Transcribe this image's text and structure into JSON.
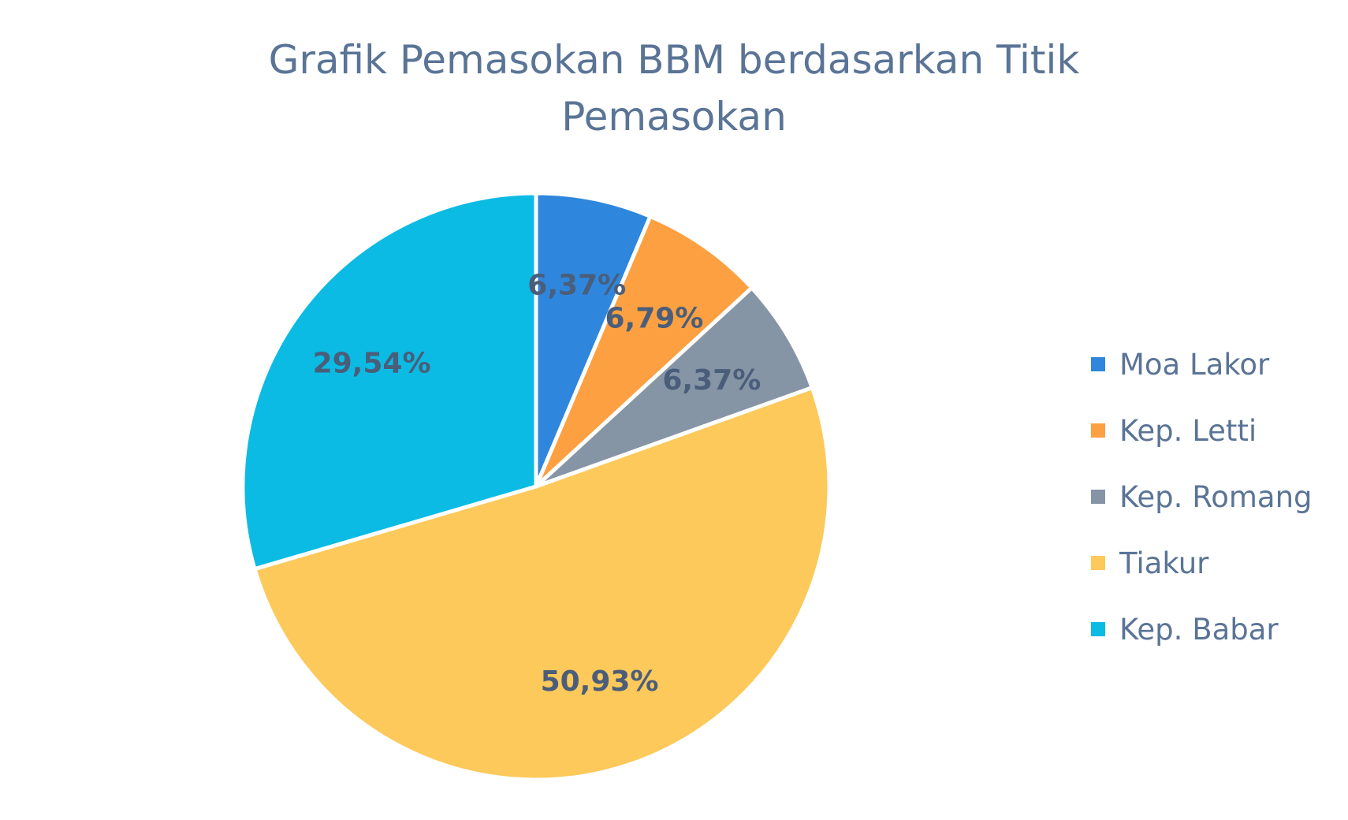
{
  "chart_data": {
    "type": "pie",
    "title": "Grafik Pemasokan BBM berdasarkan Titik Pemasokan",
    "title_lines": [
      "Grafik Pemasokan BBM berdasarkan Titik",
      "Pemasokan"
    ],
    "categories": [
      "Moa Lakor",
      "Kep. Letti",
      "Kep. Romang",
      "Tiakur",
      "Kep. Babar"
    ],
    "values": [
      6.37,
      6.79,
      6.37,
      50.93,
      29.54
    ],
    "data_labels": [
      "6,37%",
      "6,79%",
      "6,37%",
      "50,93%",
      "29,54%"
    ],
    "colors": [
      "#2f86dd",
      "#fca042",
      "#8595a6",
      "#fcc95a",
      "#0bbbe3"
    ],
    "legend_position": "right",
    "start_angle": "12 o'clock, clockwise"
  }
}
